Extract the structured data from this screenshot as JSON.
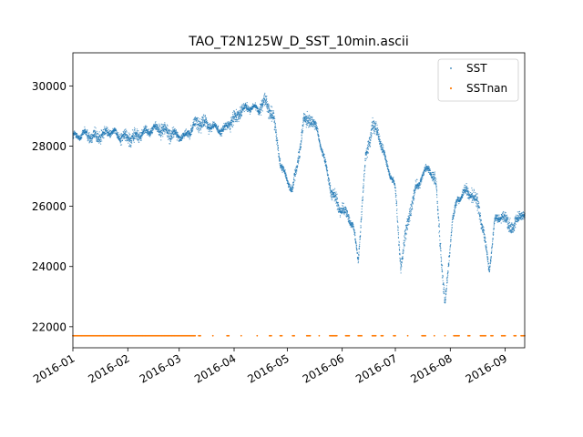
{
  "chart_data": {
    "type": "scatter",
    "title": "TAO_T2N125W_D_SST_10min.ascii",
    "xlabel": "",
    "ylabel": "",
    "x_axis_type": "date",
    "xlim": [
      "2016-01-01",
      "2016-09-12"
    ],
    "ylim": [
      21300,
      31100
    ],
    "x_ticks": [
      "2016-01",
      "2016-02",
      "2016-03",
      "2016-04",
      "2016-05",
      "2016-06",
      "2016-07",
      "2016-08",
      "2016-09"
    ],
    "y_ticks": [
      22000,
      24000,
      26000,
      28000,
      30000
    ],
    "grid": false,
    "legend_position": "top-right",
    "series": [
      {
        "name": "SST",
        "color": "#1f77b4",
        "marker": "point",
        "x": [
          "2016-01-01",
          "2016-01-08",
          "2016-01-15",
          "2016-01-22",
          "2016-01-29",
          "2016-02-05",
          "2016-02-12",
          "2016-02-19",
          "2016-02-26",
          "2016-03-04",
          "2016-03-11",
          "2016-03-18",
          "2016-03-25",
          "2016-04-01",
          "2016-04-05",
          "2016-04-10",
          "2016-04-15",
          "2016-04-18",
          "2016-04-20",
          "2016-04-23",
          "2016-04-27",
          "2016-05-01",
          "2016-05-04",
          "2016-05-07",
          "2016-05-10",
          "2016-05-14",
          "2016-05-18",
          "2016-05-22",
          "2016-05-26",
          "2016-05-30",
          "2016-06-03",
          "2016-06-07",
          "2016-06-10",
          "2016-06-14",
          "2016-06-18",
          "2016-06-22",
          "2016-06-26",
          "2016-06-30",
          "2016-07-01",
          "2016-07-04",
          "2016-07-08",
          "2016-07-12",
          "2016-07-16",
          "2016-07-20",
          "2016-07-24",
          "2016-07-27",
          "2016-07-29",
          "2016-08-02",
          "2016-08-05",
          "2016-08-09",
          "2016-08-13",
          "2016-08-17",
          "2016-08-20",
          "2016-08-23",
          "2016-08-26",
          "2016-08-30",
          "2016-09-03",
          "2016-09-06",
          "2016-09-08",
          "2016-09-10",
          "2016-09-12"
        ],
        "y": [
          28300,
          28400,
          28300,
          28500,
          28300,
          28300,
          28500,
          28600,
          28400,
          28300,
          28800,
          28700,
          28500,
          28900,
          29200,
          29300,
          29200,
          29500,
          29300,
          29000,
          27500,
          26800,
          26600,
          27500,
          28800,
          28900,
          28500,
          27500,
          26500,
          26000,
          25800,
          25400,
          24200,
          27500,
          28700,
          28300,
          27400,
          26800,
          26500,
          24000,
          25500,
          26500,
          27000,
          27300,
          26700,
          24200,
          22700,
          25500,
          26200,
          26500,
          26400,
          26000,
          25000,
          23900,
          25500,
          25700,
          25400,
          25300,
          25600,
          25800,
          25600
        ]
      },
      {
        "name": "SSTnan",
        "color": "#ff7f0e",
        "marker": "point",
        "constant_y": 21700,
        "x_ranges": [
          [
            "2016-01-01",
            "2016-03-10"
          ],
          [
            "2016-03-12",
            "2016-03-13"
          ],
          [
            "2016-03-20",
            "2016-03-20"
          ],
          [
            "2016-03-28",
            "2016-03-29"
          ],
          [
            "2016-04-05",
            "2016-04-05"
          ],
          [
            "2016-04-14",
            "2016-04-14"
          ],
          [
            "2016-04-21",
            "2016-04-22"
          ],
          [
            "2016-04-27",
            "2016-04-28"
          ],
          [
            "2016-05-04",
            "2016-05-05"
          ],
          [
            "2016-05-12",
            "2016-05-14"
          ],
          [
            "2016-05-19",
            "2016-05-19"
          ],
          [
            "2016-05-25",
            "2016-05-29"
          ],
          [
            "2016-06-03",
            "2016-06-05"
          ],
          [
            "2016-06-10",
            "2016-06-12"
          ],
          [
            "2016-06-18",
            "2016-06-20"
          ],
          [
            "2016-06-23",
            "2016-06-24"
          ],
          [
            "2016-06-30",
            "2016-07-01"
          ],
          [
            "2016-07-08",
            "2016-07-08"
          ],
          [
            "2016-07-16",
            "2016-07-18"
          ],
          [
            "2016-07-23",
            "2016-07-23"
          ],
          [
            "2016-07-29",
            "2016-07-29"
          ],
          [
            "2016-08-03",
            "2016-08-06"
          ],
          [
            "2016-08-11",
            "2016-08-12"
          ],
          [
            "2016-08-18",
            "2016-08-21"
          ],
          [
            "2016-08-24",
            "2016-08-25"
          ],
          [
            "2016-08-30",
            "2016-09-01"
          ],
          [
            "2016-09-06",
            "2016-09-07"
          ],
          [
            "2016-09-10",
            "2016-09-12"
          ]
        ]
      }
    ]
  }
}
